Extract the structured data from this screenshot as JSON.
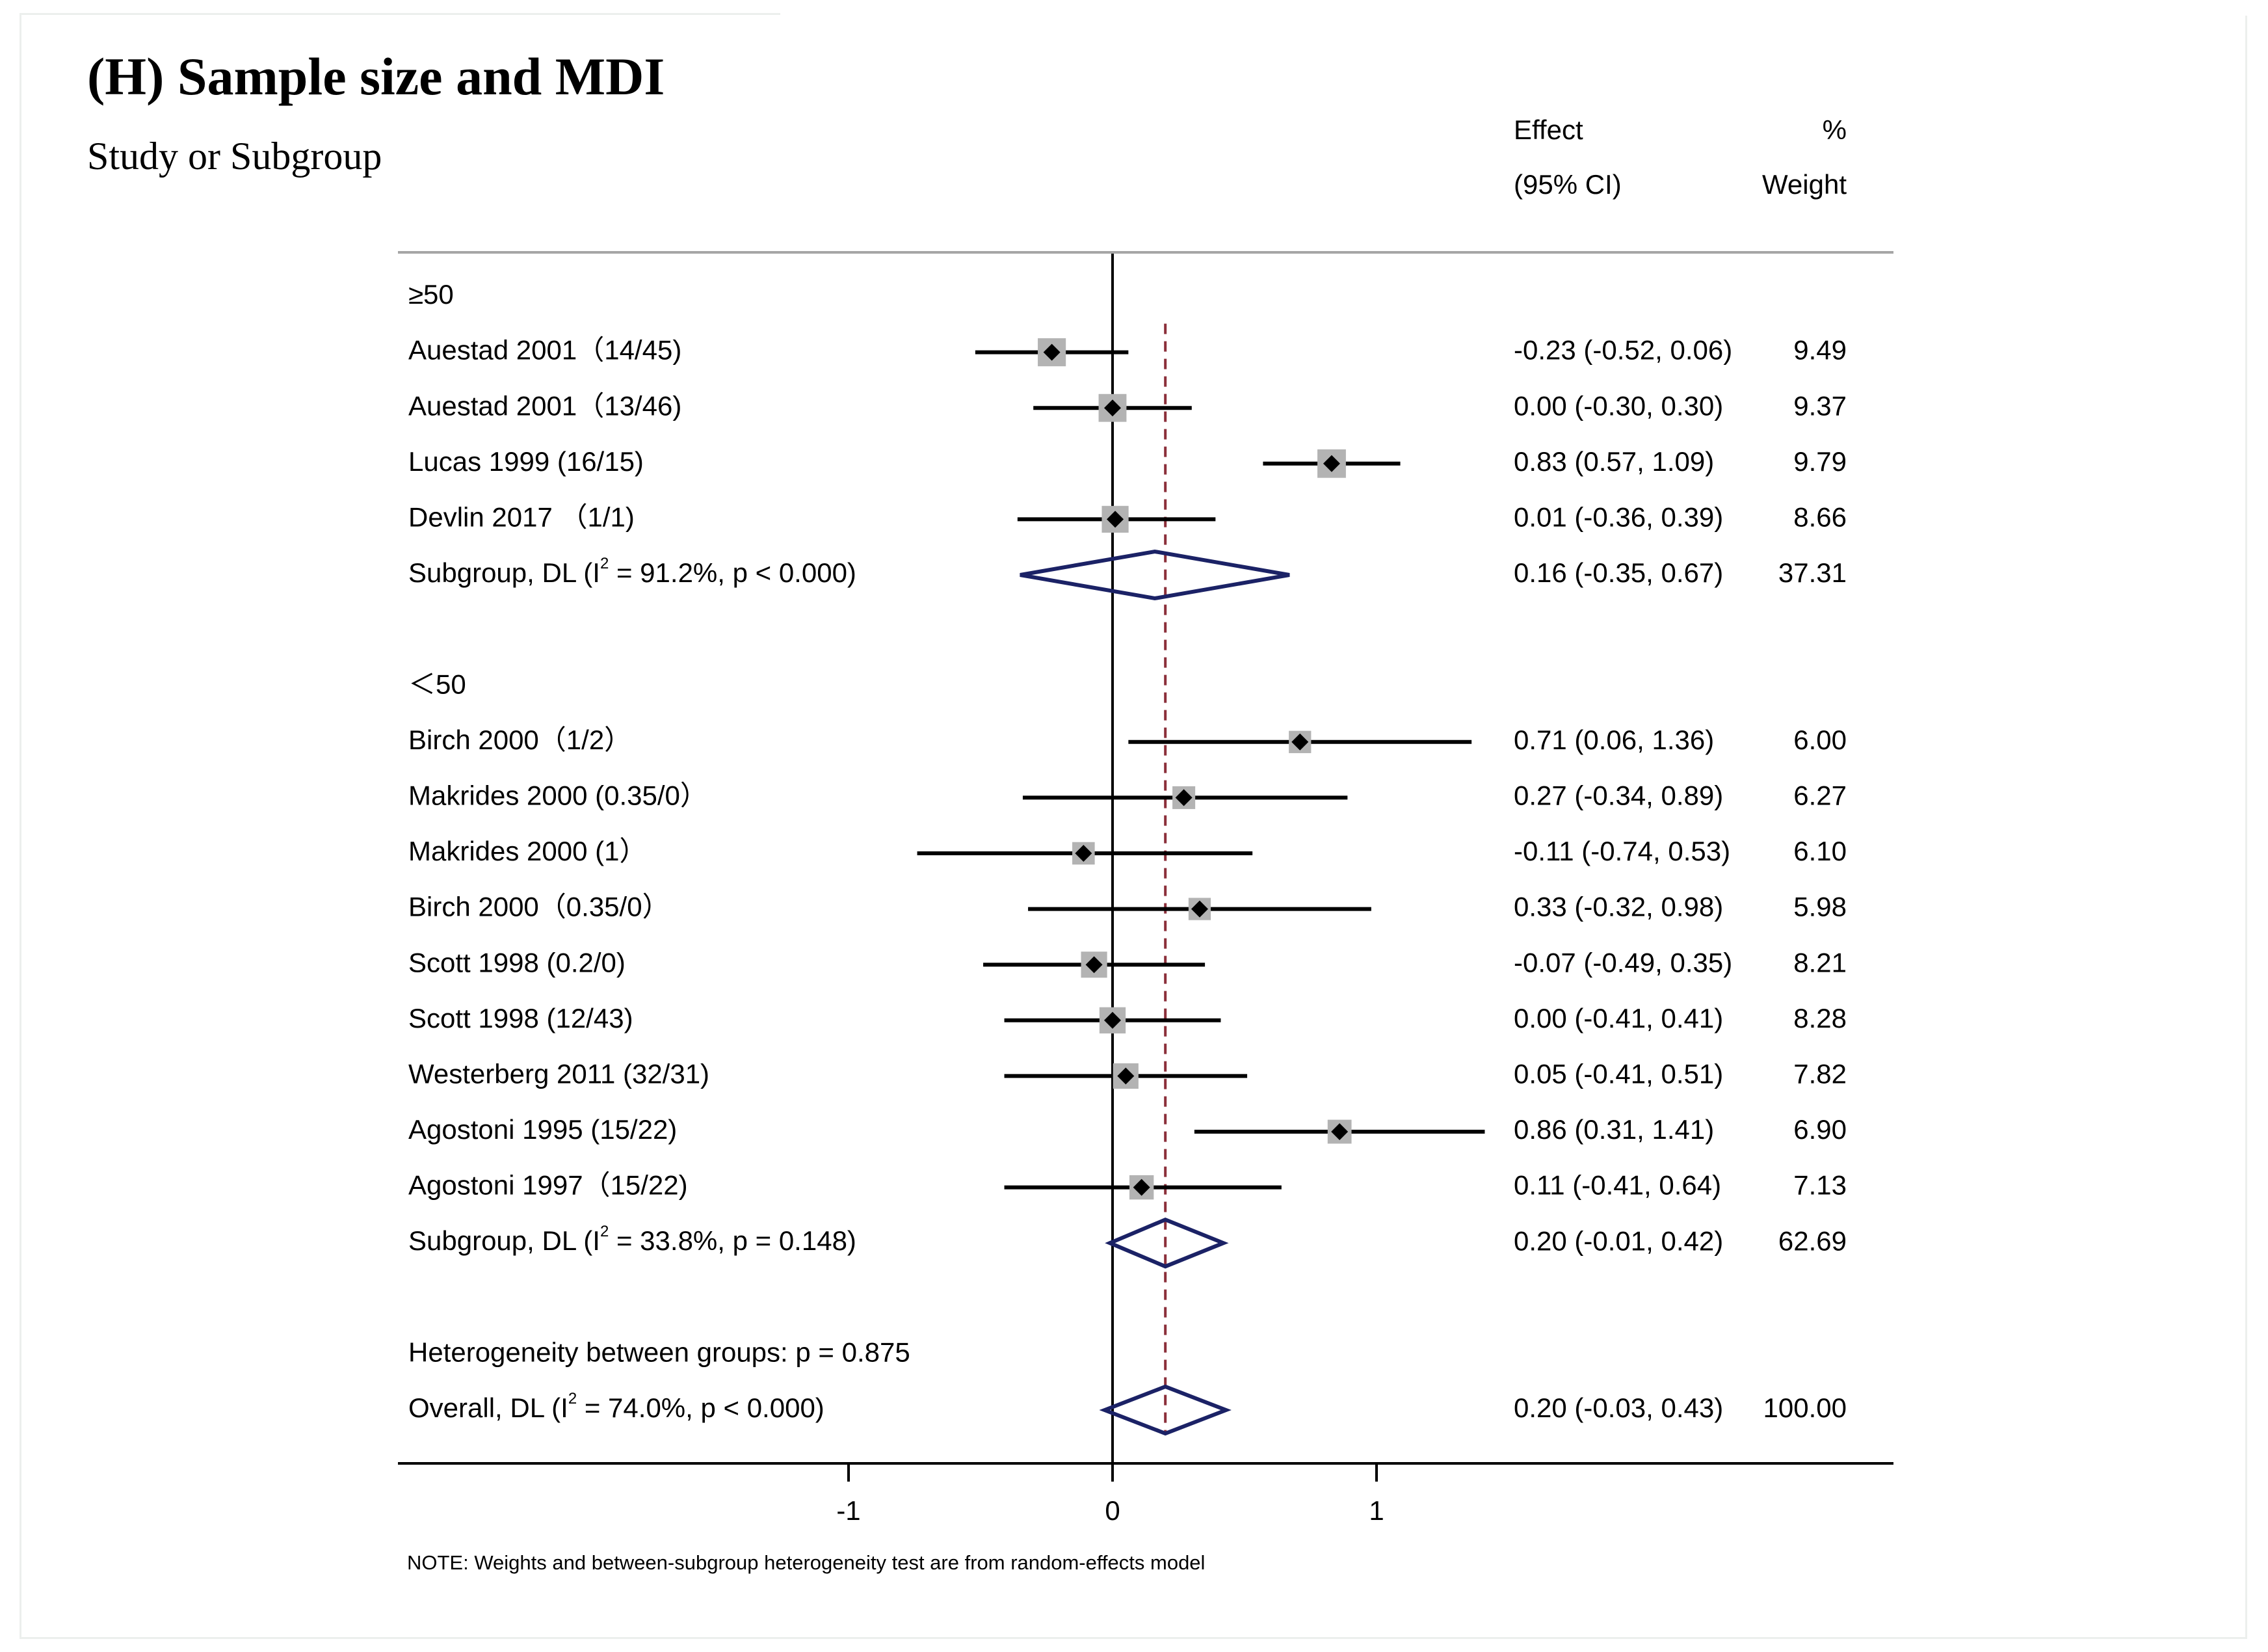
{
  "panel_title": "(H) Sample size and MDI",
  "column_headers": {
    "study": "Study or Subgroup",
    "effect_line1": "Effect",
    "effect_line2": "(95% CI)",
    "weight_line1": "%",
    "weight_line2": "Weight"
  },
  "chart_data": {
    "type": "forest",
    "xlim": [
      -2.1,
      3.3
    ],
    "x_ticks": [
      -1,
      0,
      1
    ],
    "x_tick_labels": [
      "-1",
      "0",
      "1"
    ],
    "null_line": 0,
    "overall_effect_line": 0.2,
    "rows": [
      {
        "kind": "header",
        "label": "≥50"
      },
      {
        "kind": "study",
        "label": "Auestad 2001（14/45)",
        "effect": -0.23,
        "lower": -0.52,
        "upper": 0.06,
        "effect_text": "-0.23 (-0.52, 0.06)",
        "weight": 9.49,
        "weight_text": "9.49"
      },
      {
        "kind": "study",
        "label": "Auestad 2001（13/46)",
        "effect": 0.0,
        "lower": -0.3,
        "upper": 0.3,
        "effect_text": "0.00 (-0.30, 0.30)",
        "weight": 9.37,
        "weight_text": "9.37"
      },
      {
        "kind": "study",
        "label": "Lucas 1999 (16/15)",
        "effect": 0.83,
        "lower": 0.57,
        "upper": 1.09,
        "effect_text": "0.83 (0.57, 1.09)",
        "weight": 9.79,
        "weight_text": "9.79"
      },
      {
        "kind": "study",
        "label": "Devlin 2017 （1/1)",
        "effect": 0.01,
        "lower": -0.36,
        "upper": 0.39,
        "effect_text": "0.01 (-0.36, 0.39)",
        "weight": 8.66,
        "weight_text": "8.66"
      },
      {
        "kind": "subgroup",
        "label_pre": "Subgroup, DL (I",
        "label_sup": "2",
        "label_post": " = 91.2%, p < 0.000)",
        "effect": 0.16,
        "lower": -0.35,
        "upper": 0.67,
        "effect_text": "0.16 (-0.35, 0.67)",
        "weight": 37.31,
        "weight_text": "37.31"
      },
      {
        "kind": "blank"
      },
      {
        "kind": "header",
        "label": "＜50"
      },
      {
        "kind": "study",
        "label": "Birch 2000（1/2）",
        "effect": 0.71,
        "lower": 0.06,
        "upper": 1.36,
        "effect_text": "0.71 (0.06, 1.36)",
        "weight": 6.0,
        "weight_text": "6.00"
      },
      {
        "kind": "study",
        "label": "Makrides 2000 (0.35/0）",
        "effect": 0.27,
        "lower": -0.34,
        "upper": 0.89,
        "effect_text": "0.27 (-0.34, 0.89)",
        "weight": 6.27,
        "weight_text": "6.27"
      },
      {
        "kind": "study",
        "label": "Makrides 2000 (1）",
        "effect": -0.11,
        "lower": -0.74,
        "upper": 0.53,
        "effect_text": "-0.11 (-0.74, 0.53)",
        "weight": 6.1,
        "weight_text": "6.10"
      },
      {
        "kind": "study",
        "label": "Birch 2000（0.35/0）",
        "effect": 0.33,
        "lower": -0.32,
        "upper": 0.98,
        "effect_text": "0.33 (-0.32, 0.98)",
        "weight": 5.98,
        "weight_text": "5.98"
      },
      {
        "kind": "study",
        "label": "Scott 1998 (0.2/0)",
        "effect": -0.07,
        "lower": -0.49,
        "upper": 0.35,
        "effect_text": "-0.07 (-0.49, 0.35)",
        "weight": 8.21,
        "weight_text": "8.21"
      },
      {
        "kind": "study",
        "label": "Scott 1998 (12/43)",
        "effect": 0.0,
        "lower": -0.41,
        "upper": 0.41,
        "effect_text": "0.00 (-0.41, 0.41)",
        "weight": 8.28,
        "weight_text": "8.28"
      },
      {
        "kind": "study",
        "label": "Westerberg 2011 (32/31)",
        "effect": 0.05,
        "lower": -0.41,
        "upper": 0.51,
        "effect_text": "0.05 (-0.41, 0.51)",
        "weight": 7.82,
        "weight_text": "7.82"
      },
      {
        "kind": "study",
        "label": "Agostoni 1995 (15/22)",
        "effect": 0.86,
        "lower": 0.31,
        "upper": 1.41,
        "effect_text": "0.86 (0.31, 1.41)",
        "weight": 6.9,
        "weight_text": "6.90"
      },
      {
        "kind": "study",
        "label": "Agostoni 1997（15/22)",
        "effect": 0.11,
        "lower": -0.41,
        "upper": 0.64,
        "effect_text": "0.11 (-0.41, 0.64)",
        "weight": 7.13,
        "weight_text": "7.13"
      },
      {
        "kind": "subgroup",
        "label_pre": "Subgroup, DL (I",
        "label_sup": "2",
        "label_post": " = 33.8%, p = 0.148)",
        "effect": 0.2,
        "lower": -0.01,
        "upper": 0.42,
        "effect_text": "0.20 (-0.01, 0.42)",
        "weight": 62.69,
        "weight_text": "62.69"
      },
      {
        "kind": "blank"
      },
      {
        "kind": "text",
        "label": "Heterogeneity between groups: p = 0.875"
      },
      {
        "kind": "overall",
        "label_pre": "Overall, DL (I",
        "label_sup": "2",
        "label_post": " = 74.0%, p < 0.000)",
        "effect": 0.2,
        "lower": -0.03,
        "upper": 0.43,
        "effect_text": "0.20 (-0.03, 0.43)",
        "weight": 100.0,
        "weight_text": "100.00"
      }
    ],
    "note": "NOTE: Weights and between-subgroup heterogeneity test are from random-effects model"
  },
  "colors": {
    "text": "#000000",
    "ci_line": "#000000",
    "weight_box": "#b3b3b3",
    "point_marker": "#000000",
    "diamond_stroke": "#1b2266",
    "effect_line": "#8b2f3a",
    "rule": "#a6a6a6",
    "axis": "#000000"
  }
}
